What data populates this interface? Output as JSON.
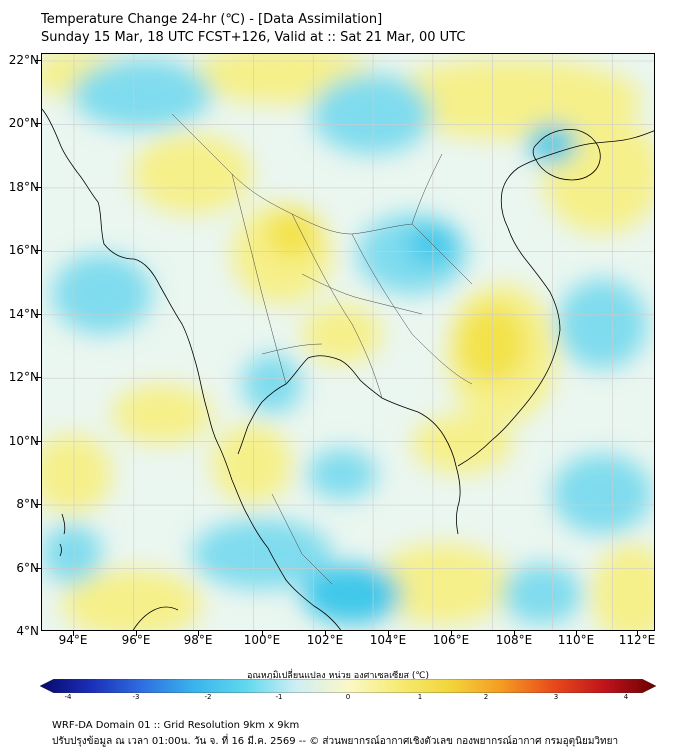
{
  "title_line1": "Temperature Change 24-hr (℃) - [Data Assimilation]",
  "title_line2": "Sunday 15 Mar, 18 UTC FCST+126, Valid at :: Sat 21 Mar, 00 UTC",
  "lat_labels": [
    "22°N",
    "20°N",
    "18°N",
    "16°N",
    "14°N",
    "12°N",
    "10°N",
    "8°N",
    "6°N",
    "4°N"
  ],
  "lon_labels": [
    "94°E",
    "96°E",
    "98°E",
    "100°E",
    "102°E",
    "104°E",
    "106°E",
    "108°E",
    "110°E",
    "112°E"
  ],
  "colorbar": {
    "title": "อุณหภูมิเปลี่ยนแปลง หน่วย องศาเซลเซียส (℃)",
    "ticks": [
      "-4",
      "-3",
      "-2",
      "-1",
      "0",
      "1",
      "2",
      "3",
      "4"
    ],
    "range": [
      -4,
      4
    ],
    "colors": [
      "#08086b",
      "#1a2fb8",
      "#2f6fe0",
      "#39b4ec",
      "#5fd8ee",
      "#cfeef4",
      "#fbf8c8",
      "#f5ec72",
      "#f3d43a",
      "#f49b22",
      "#e84a1a",
      "#c0131b",
      "#6b0000"
    ]
  },
  "footer_line1": "WRF-DA Domain 01 :: Grid Resolution 9km x 9km",
  "footer_line2": "ปรับปรุงข้อมูล ณ เวลา 01:00น. วัน จ. ที่ 16 มี.ค. 2569 -- © ส่วนพยากรณ์อากาศเชิงตัวเลข กองพยากรณ์อากาศ กรมอุตุนิยมวิทยา",
  "colors": {
    "warm_fill": "#f6f08a",
    "warm_strong": "#f3e24a",
    "cool_fill": "#7fdcee",
    "cool_strong": "#3fc8ea",
    "neutral": "#eaf6f0",
    "coastline": "#000000",
    "grid": "#cccccc"
  }
}
